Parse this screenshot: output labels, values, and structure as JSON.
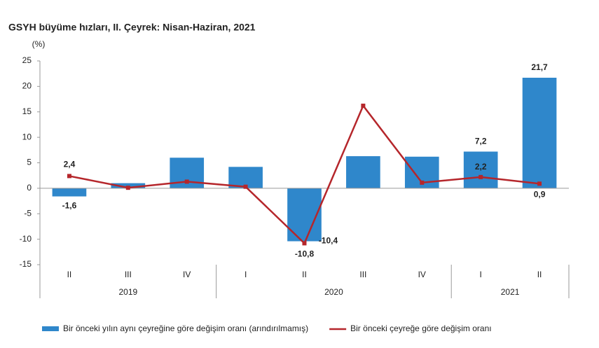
{
  "chart_data": {
    "type": "bar-line",
    "title": "GSYH büyüme hızları, II. Çeyrek: Nisan-Haziran, 2021",
    "y_label": "(%)",
    "categories": [
      "II",
      "III",
      "IV",
      "I",
      "II",
      "III",
      "IV",
      "I",
      "II"
    ],
    "groups": [
      {
        "label": "2019",
        "span": 3
      },
      {
        "label": "2020",
        "span": 4
      },
      {
        "label": "2021",
        "span": 2
      }
    ],
    "ylim": [
      -15,
      25
    ],
    "yticks": [
      25,
      20,
      15,
      10,
      5,
      0,
      -5,
      -10,
      -15
    ],
    "series": [
      {
        "name": "Bir önceki yılın aynı çeyreğine göre değişim oranı (arındırılmamış)",
        "type": "bar",
        "color": "#2f87cb",
        "values": [
          -1.6,
          1.0,
          6.0,
          4.2,
          -10.4,
          6.3,
          6.2,
          7.2,
          21.7
        ],
        "value_labels": [
          "-1,6",
          null,
          null,
          null,
          "-10,4",
          null,
          null,
          "7,2",
          "21,7"
        ]
      },
      {
        "name": "Bir önceki çeyreğe göre değişim oranı",
        "type": "line",
        "color": "#b5262b",
        "values": [
          2.4,
          0.1,
          1.3,
          0.3,
          -10.8,
          16.2,
          1.1,
          2.2,
          0.9
        ],
        "value_labels": [
          "2,4",
          null,
          null,
          null,
          "-10,8",
          null,
          null,
          "2,2",
          "0,9"
        ]
      }
    ]
  }
}
